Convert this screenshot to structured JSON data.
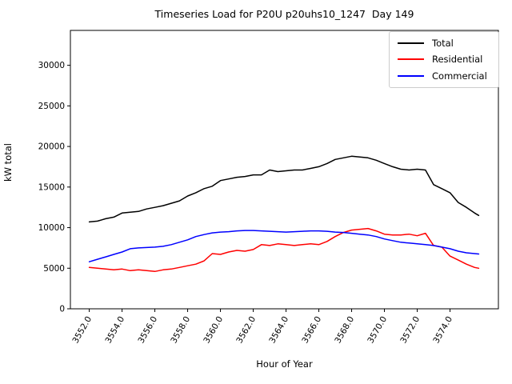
{
  "chart": {
    "title": "Timeseries Load for P20U p20uhs10_1247  Day 149",
    "xlabel": "Hour of Year",
    "ylabel": "kW total"
  },
  "chart_data": {
    "type": "line",
    "title": "Timeseries Load for P20U p20uhs10_1247  Day 149",
    "xlabel": "Hour of Year",
    "ylabel": "kW total",
    "grid": false,
    "legend_position": "upper right",
    "xlim": [
      3550.85,
      3576.95
    ],
    "ylim": [
      0,
      34300
    ],
    "xticks": [
      3552,
      3554,
      3556,
      3558,
      3560,
      3562,
      3564,
      3566,
      3568,
      3570,
      3572,
      3574
    ],
    "xtick_labels": [
      "3552.0",
      "3554.0",
      "3556.0",
      "3558.0",
      "3560.0",
      "3562.0",
      "3564.0",
      "3566.0",
      "3568.0",
      "3570.0",
      "3572.0",
      "3574.0"
    ],
    "yticks": [
      0,
      5000,
      10000,
      15000,
      20000,
      25000,
      30000
    ],
    "ytick_labels": [
      "0",
      "5000",
      "10000",
      "15000",
      "20000",
      "25000",
      "30000"
    ],
    "x": [
      3552.0,
      3552.5,
      3553.0,
      3553.5,
      3554.0,
      3554.5,
      3555.0,
      3555.5,
      3556.0,
      3556.5,
      3557.0,
      3557.5,
      3558.0,
      3558.5,
      3559.0,
      3559.5,
      3560.0,
      3560.5,
      3561.0,
      3561.5,
      3562.0,
      3562.5,
      3563.0,
      3563.5,
      3564.0,
      3564.5,
      3565.0,
      3565.5,
      3566.0,
      3566.5,
      3567.0,
      3567.5,
      3568.0,
      3568.5,
      3569.0,
      3569.5,
      3570.0,
      3570.5,
      3571.0,
      3571.5,
      3572.0,
      3572.5,
      3573.0,
      3573.5,
      3574.0,
      3574.5,
      3575.0,
      3575.5,
      3575.75
    ],
    "series": [
      {
        "name": "Total",
        "color": "#000000",
        "values": [
          10700,
          10800,
          11100,
          11300,
          11800,
          11900,
          12000,
          12300,
          12500,
          12700,
          13000,
          13300,
          13900,
          14300,
          14800,
          15100,
          15800,
          16000,
          16200,
          16300,
          16500,
          16500,
          17100,
          16900,
          17000,
          17100,
          17100,
          17300,
          17500,
          17900,
          18400,
          18600,
          18800,
          18700,
          18600,
          18300,
          17900,
          17500,
          17200,
          17100,
          17200,
          17100,
          15300,
          14800,
          14300,
          13100,
          12500,
          11800,
          11500
        ]
      },
      {
        "name": "Residential",
        "color": "#ff0000",
        "values": [
          5100,
          5000,
          4900,
          4800,
          4900,
          4700,
          4800,
          4700,
          4600,
          4800,
          4900,
          5100,
          5300,
          5500,
          5900,
          6800,
          6700,
          7000,
          7200,
          7100,
          7300,
          7900,
          7800,
          8000,
          7900,
          7800,
          7900,
          8000,
          7900,
          8300,
          8900,
          9400,
          9700,
          9800,
          9900,
          9600,
          9200,
          9100,
          9100,
          9200,
          9000,
          9300,
          7800,
          7600,
          6500,
          6000,
          5500,
          5100,
          5000
        ]
      },
      {
        "name": "Commercial",
        "color": "#0000ff",
        "values": [
          5800,
          6100,
          6400,
          6700,
          7000,
          7400,
          7500,
          7550,
          7600,
          7700,
          7900,
          8200,
          8500,
          8900,
          9150,
          9350,
          9450,
          9500,
          9600,
          9650,
          9650,
          9600,
          9550,
          9500,
          9450,
          9500,
          9550,
          9600,
          9600,
          9550,
          9450,
          9400,
          9300,
          9200,
          9100,
          8900,
          8600,
          8400,
          8200,
          8100,
          8000,
          7900,
          7800,
          7600,
          7400,
          7100,
          6900,
          6800,
          6750
        ]
      }
    ]
  }
}
